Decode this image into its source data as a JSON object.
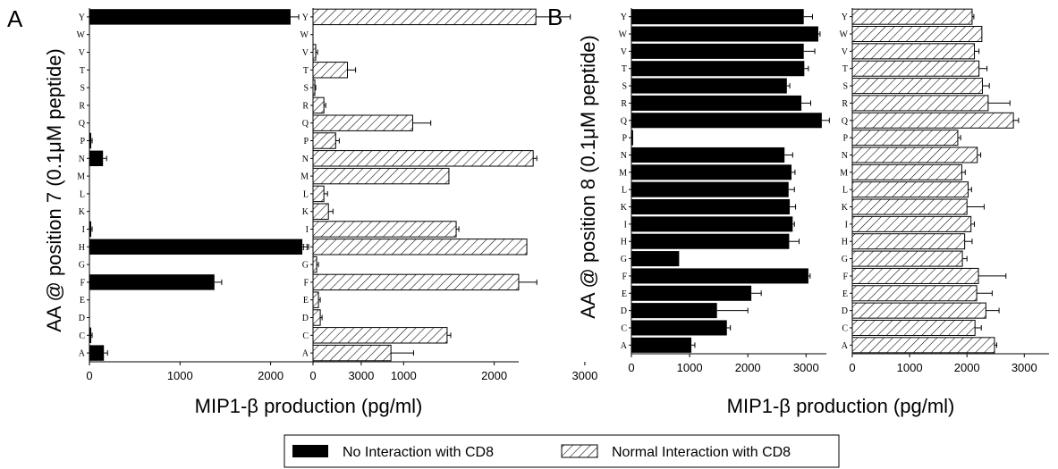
{
  "chart_data": [
    {
      "type": "bar",
      "panel_label": "A",
      "ylabel": "AA @ position 7 (0.1μM peptide)",
      "xlabel": "MIP1-β production (pg/ml)",
      "categories": [
        "Y",
        "W",
        "V",
        "T",
        "S",
        "R",
        "Q",
        "P",
        "N",
        "M",
        "L",
        "K",
        "I",
        "H",
        "G",
        "F",
        "E",
        "D",
        "C",
        "A"
      ],
      "subplots": [
        {
          "series_name": "No Interaction with CD8",
          "fill": "solid",
          "xlim": [
            0,
            3500
          ],
          "xticks": [
            "0",
            "1000",
            "2000",
            "3000"
          ],
          "values": [
            2220,
            0,
            0,
            0,
            0,
            0,
            0,
            20,
            150,
            0,
            0,
            0,
            20,
            2350,
            0,
            1380,
            0,
            0,
            20,
            160
          ],
          "errors": [
            90,
            0,
            0,
            0,
            0,
            0,
            0,
            10,
            40,
            0,
            0,
            0,
            10,
            70,
            0,
            80,
            0,
            0,
            10,
            40
          ]
        },
        {
          "series_name": "Normal Interaction with CD8",
          "fill": "hatched",
          "xlim": [
            0,
            3500
          ],
          "xticks": [
            "0",
            "1000",
            "2000",
            "3000"
          ],
          "values": [
            2460,
            0,
            30,
            380,
            20,
            120,
            1100,
            250,
            2430,
            1500,
            120,
            170,
            1580,
            2360,
            40,
            2270,
            60,
            80,
            1480,
            860
          ],
          "errors": [
            380,
            0,
            20,
            90,
            10,
            20,
            200,
            40,
            40,
            0,
            40,
            50,
            30,
            0,
            20,
            200,
            20,
            20,
            40,
            250
          ]
        }
      ]
    },
    {
      "type": "bar",
      "panel_label": "B",
      "ylabel": "AA @ position 8 (0.1μM peptide)",
      "xlabel": "MIP1-β production (pg/ml)",
      "categories": [
        "Y",
        "W",
        "V",
        "T",
        "S",
        "R",
        "Q",
        "P",
        "N",
        "M",
        "L",
        "K",
        "I",
        "H",
        "G",
        "F",
        "E",
        "D",
        "C",
        "A"
      ],
      "subplots": [
        {
          "series_name": "No Interaction with CD8",
          "fill": "solid",
          "xlim": [
            0,
            3500
          ],
          "xticks": [
            "0",
            "1000",
            "2000",
            "3000"
          ],
          "values": [
            2960,
            3210,
            2960,
            2970,
            2670,
            2920,
            3270,
            30,
            2630,
            2750,
            2700,
            2720,
            2770,
            2710,
            820,
            3040,
            2060,
            1470,
            1640,
            1030
          ],
          "errors": [
            150,
            30,
            190,
            70,
            50,
            160,
            130,
            0,
            140,
            60,
            100,
            100,
            30,
            170,
            0,
            30,
            170,
            530,
            60,
            60
          ]
        },
        {
          "series_name": "Normal Interaction with CD8",
          "fill": "hatched",
          "xlim": [
            0,
            3500
          ],
          "xticks": [
            "0",
            "1000",
            "2000",
            "3000"
          ],
          "values": [
            2090,
            2260,
            2130,
            2210,
            2270,
            2370,
            2810,
            1840,
            2180,
            1910,
            2020,
            2000,
            2070,
            1960,
            1920,
            2200,
            2170,
            2330,
            2140,
            2480
          ],
          "errors": [
            30,
            0,
            80,
            140,
            120,
            380,
            90,
            50,
            60,
            60,
            60,
            300,
            60,
            130,
            80,
            480,
            270,
            230,
            110,
            40
          ]
        }
      ]
    }
  ],
  "legend": {
    "items": [
      {
        "label": "No Interaction with CD8",
        "fill": "solid"
      },
      {
        "label": "Normal Interaction with CD8",
        "fill": "hatched"
      }
    ]
  },
  "colors": {
    "bar_solid": "#000000",
    "hatch_line": "#000000",
    "background": "#ffffff"
  }
}
